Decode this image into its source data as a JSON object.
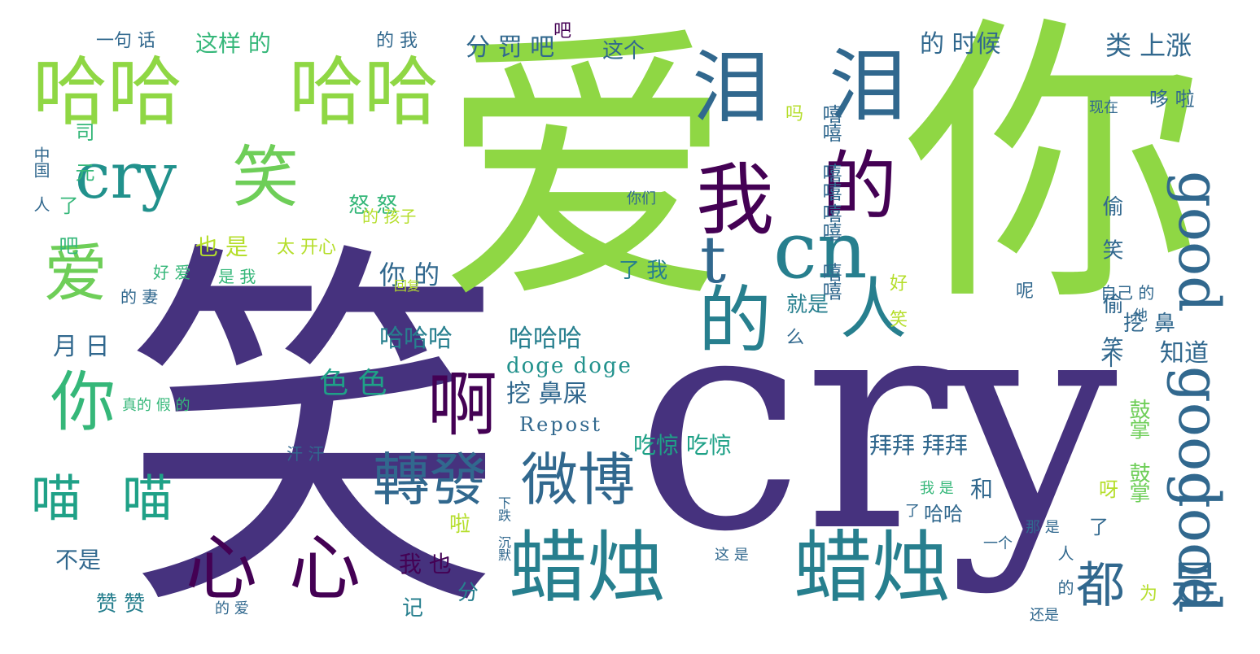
{
  "word_cloud": {
    "words": [
      {
        "id": "xiao_big",
        "text": "笑"
      },
      {
        "id": "cry_big",
        "text": "cry"
      },
      {
        "id": "ai_big",
        "text": "爱"
      },
      {
        "id": "ni_big",
        "text": "你"
      },
      {
        "id": "haha1",
        "text": "哈哈"
      },
      {
        "id": "haha2",
        "text": "哈哈"
      },
      {
        "id": "lei1",
        "text": "泪"
      },
      {
        "id": "lei2",
        "text": "泪"
      },
      {
        "id": "cry_mid",
        "text": "cry"
      },
      {
        "id": "xiao_mid",
        "text": "笑"
      },
      {
        "id": "wo_big",
        "text": "我"
      },
      {
        "id": "de1",
        "text": "的"
      },
      {
        "id": "de2",
        "text": "的"
      },
      {
        "id": "t",
        "text": "t"
      },
      {
        "id": "cn",
        "text": "cn"
      },
      {
        "id": "ren",
        "text": "人"
      },
      {
        "id": "good1",
        "text": "good"
      },
      {
        "id": "good2",
        "text": "good"
      },
      {
        "id": "good3",
        "text": "good"
      },
      {
        "id": "ai_mid",
        "text": "爱"
      },
      {
        "id": "ni_mid",
        "text": "你"
      },
      {
        "id": "a",
        "text": "啊"
      },
      {
        "id": "lazhu1",
        "text": "蜡烛"
      },
      {
        "id": "lazhu2",
        "text": "蜡烛"
      },
      {
        "id": "xin1",
        "text": "心"
      },
      {
        "id": "xin2",
        "text": "心"
      },
      {
        "id": "zhuanfa",
        "text": "轉發"
      },
      {
        "id": "weibo",
        "text": "微博"
      },
      {
        "id": "miao1",
        "text": "喵"
      },
      {
        "id": "miao2",
        "text": "喵"
      },
      {
        "id": "dou",
        "text": "都"
      },
      {
        "id": "shi",
        "text": "是"
      },
      {
        "id": "hahaha1",
        "text": "哈哈哈"
      },
      {
        "id": "hahaha2",
        "text": "哈哈哈"
      },
      {
        "id": "doge",
        "text": "doge doge"
      },
      {
        "id": "repost",
        "text": "Repost"
      },
      {
        "id": "sese",
        "text": "色 色"
      },
      {
        "id": "waobishi",
        "text": "挖 鼻屎"
      },
      {
        "id": "chijing",
        "text": "吃惊 吃惊"
      },
      {
        "id": "baibai",
        "text": "拜拜 拜拜"
      },
      {
        "id": "nide",
        "text": "你 的"
      },
      {
        "id": "yueri",
        "text": "月 日"
      },
      {
        "id": "buzhidao",
        "text": "知道"
      },
      {
        "id": "leishangzhang",
        "text": "类 上涨"
      },
      {
        "id": "deshihou",
        "text": "的 时候"
      },
      {
        "id": "fenfaba",
        "text": "分 罚 吧"
      },
      {
        "id": "zheyangde",
        "text": "这样 的"
      },
      {
        "id": "zhege",
        "text": "这个"
      },
      {
        "id": "yijuhua",
        "text": "一句 话"
      },
      {
        "id": "dewo",
        "text": "的 我"
      },
      {
        "id": "nunu",
        "text": "怒 怒"
      },
      {
        "id": "yeshi",
        "text": "也 是"
      },
      {
        "id": "taikaixin",
        "text": "太 开心"
      },
      {
        "id": "woye",
        "text": "我 也"
      },
      {
        "id": "buyao",
        "text": "不是"
      },
      {
        "id": "zanzan",
        "text": "赞 赞"
      },
      {
        "id": "ji",
        "text": "记"
      },
      {
        "id": "fen",
        "text": "分"
      },
      {
        "id": "he",
        "text": "和"
      },
      {
        "id": "bu",
        "text": "不"
      },
      {
        "id": "la",
        "text": "啦"
      },
      {
        "id": "ya",
        "text": "呀"
      },
      {
        "id": "xiaoxiao",
        "text": "好 笑"
      },
      {
        "id": "wa",
        "text": "挖"
      },
      {
        "id": "bi",
        "text": "鼻"
      },
      {
        "id": "hahala",
        "text": "哈哈"
      },
      {
        "id": "guzhang",
        "text": "鼓掌 鼓掌"
      },
      {
        "id": "louxiao",
        "text": "偷 笑"
      },
      {
        "id": "louxiao2",
        "text": "偷 笑"
      },
      {
        "id": "huahua",
        "text": "嘻嘻 嘻嘻"
      },
      {
        "id": "huahua2",
        "text": "嘻嘻 嘻嘻"
      },
      {
        "id": "ma",
        "text": "吗"
      },
      {
        "id": "jiushi",
        "text": "就是"
      },
      {
        "id": "me",
        "text": "么"
      },
      {
        "id": "haizi",
        "text": "的 孩子"
      },
      {
        "id": "huifu",
        "text": "回复"
      },
      {
        "id": "lewo",
        "text": "了 我"
      },
      {
        "id": "ba",
        "text": "吧"
      },
      {
        "id": "le",
        "text": "了"
      },
      {
        "id": "hanhan",
        "text": "汗 汗"
      },
      {
        "id": "zhongguo",
        "text": "中国 人"
      },
      {
        "id": "siyuan",
        "text": "司 元"
      },
      {
        "id": "lene",
        "text": "了 吧"
      },
      {
        "id": "nimen",
        "text": "你们"
      },
      {
        "id": "zijide",
        "text": "自己 的"
      },
      {
        "id": "taba",
        "text": "他"
      },
      {
        "id": "duo_la",
        "text": "哆 啦"
      },
      {
        "id": "xianzai",
        "text": "现在"
      },
      {
        "id": "haoai",
        "text": "好 爱"
      },
      {
        "id": "shiwo",
        "text": "是 我"
      },
      {
        "id": "deqi",
        "text": "的 妻"
      },
      {
        "id": "nashi",
        "text": "那 是"
      },
      {
        "id": "yinwei",
        "text": "为"
      },
      {
        "id": "ren2",
        "text": "人 的"
      },
      {
        "id": "zheshi",
        "text": "这 是"
      },
      {
        "id": "haishi",
        "text": "还是"
      },
      {
        "id": "yige",
        "text": "一个"
      },
      {
        "id": "le2",
        "text": "了"
      },
      {
        "id": "wenwo",
        "text": "我 是"
      },
      {
        "id": "ne",
        "text": "呢"
      },
      {
        "id": "zhenni",
        "text": "真的 假 的"
      },
      {
        "id": "xiadie",
        "text": "下跌 沉默"
      },
      {
        "id": "deai",
        "text": "的 爱"
      }
    ],
    "colors": {
      "dark_purple": "#440154",
      "indigo": "#46327e",
      "blue": "#3b528b",
      "steel_blue": "#31688e",
      "teal": "#277f8e",
      "teal_green": "#21918c",
      "sea_green": "#1fa187",
      "green": "#35b779",
      "light_green": "#6ece58",
      "lime": "#8fd744",
      "yellow_green": "#b5de2b"
    }
  }
}
